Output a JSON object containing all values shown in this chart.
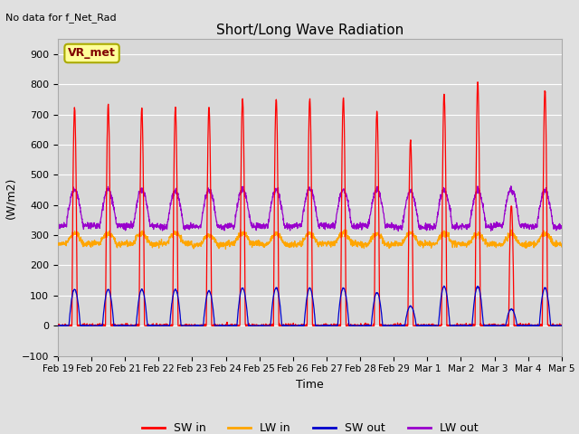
{
  "title": "Short/Long Wave Radiation",
  "xlabel": "Time",
  "ylabel": "(W/m2)",
  "annotation": "No data for f_Net_Rad",
  "box_label": "VR_met",
  "ylim": [
    -100,
    950
  ],
  "yticks": [
    -100,
    0,
    100,
    200,
    300,
    400,
    500,
    600,
    700,
    800,
    900
  ],
  "xtick_labels": [
    "Feb 19",
    "Feb 20",
    "Feb 21",
    "Feb 22",
    "Feb 23",
    "Feb 24",
    "Feb 25",
    "Feb 26",
    "Feb 27",
    "Feb 28",
    "Feb 29",
    "Mar 1",
    "Mar 2",
    "Mar 3",
    "Mar 4",
    "Mar 5"
  ],
  "bg_color": "#e0e0e0",
  "plot_bg_color": "#d8d8d8",
  "grid_color": "white",
  "sw_in_color": "#ff0000",
  "lw_in_color": "#ffa500",
  "sw_out_color": "#0000cc",
  "lw_out_color": "#9900cc",
  "legend_labels": [
    "SW in",
    "LW in",
    "SW out",
    "LW out"
  ],
  "n_days": 15,
  "sw_in_peaks": [
    720,
    730,
    720,
    725,
    725,
    755,
    750,
    755,
    755,
    710,
    615,
    770,
    805,
    400,
    780
  ],
  "sw_out_peaks": [
    120,
    120,
    120,
    120,
    115,
    125,
    125,
    125,
    125,
    110,
    65,
    130,
    130,
    55,
    125
  ],
  "lw_in_base": 270,
  "lw_out_base": 330,
  "lw_out_day_peak": 450
}
